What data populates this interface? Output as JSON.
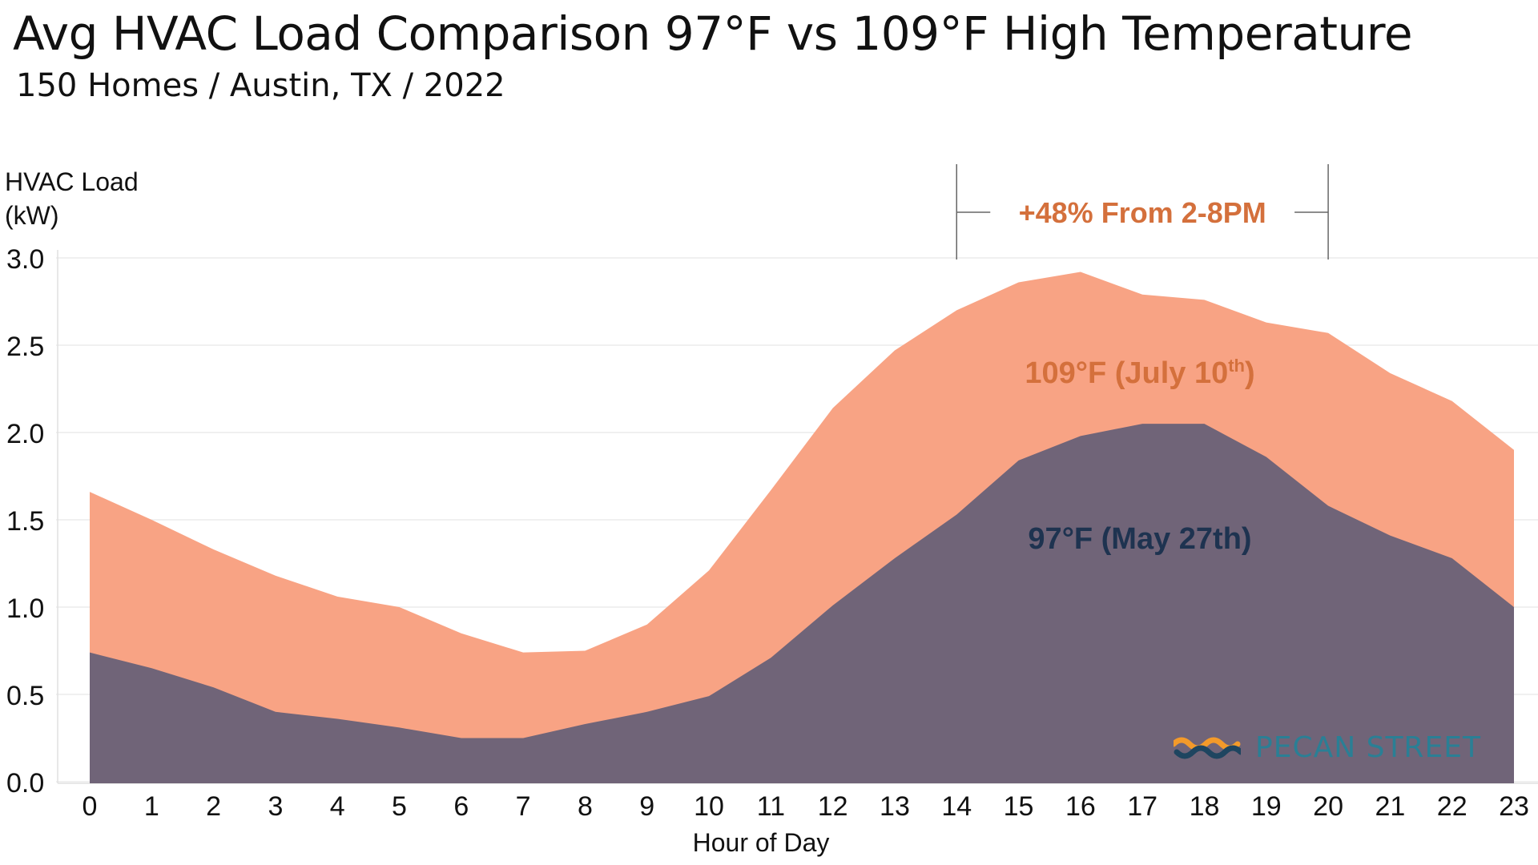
{
  "title": "Avg HVAC Load Comparison 97°F vs 109°F High Temperature",
  "subtitle": "150 Homes / Austin, TX / 2022",
  "brand": {
    "name": "PECAN STREET"
  },
  "colors": {
    "hot_area": "#f8a384",
    "mild_area": "#706478",
    "hot_text": "#d4703c",
    "mild_text": "#1e3350",
    "brand": "#2a7f95",
    "brand_accent": "#f39a2a"
  },
  "chart_data": {
    "type": "area",
    "ylabel_line1": "HVAC Load",
    "ylabel_line2": "(kW)",
    "xlabel": "Hour of Day",
    "x": [
      0,
      1,
      2,
      3,
      4,
      5,
      6,
      7,
      8,
      9,
      10,
      11,
      12,
      13,
      14,
      15,
      16,
      17,
      18,
      19,
      20,
      21,
      22,
      23
    ],
    "ylim": [
      0,
      3.0
    ],
    "yticks": [
      "0.0",
      "0.5",
      "1.0",
      "1.5",
      "2.0",
      "2.5",
      "3.0"
    ],
    "grid": true,
    "series": [
      {
        "name": "109°F (July 10th)",
        "label_main": "109°F (July 10",
        "label_sup": "th",
        "label_end": ")",
        "values": [
          1.66,
          1.5,
          1.33,
          1.18,
          1.06,
          1.0,
          0.85,
          0.74,
          0.75,
          0.9,
          1.21,
          1.67,
          2.14,
          2.47,
          2.7,
          2.86,
          2.92,
          2.79,
          2.76,
          2.63,
          2.57,
          2.34,
          2.18,
          1.9
        ]
      },
      {
        "name": "97°F (May 27th)",
        "values": [
          0.74,
          0.65,
          0.54,
          0.4,
          0.36,
          0.31,
          0.25,
          0.25,
          0.33,
          0.4,
          0.49,
          0.71,
          1.01,
          1.28,
          1.53,
          1.84,
          1.98,
          2.05,
          2.05,
          1.86,
          1.58,
          1.41,
          1.28,
          1.0
        ]
      }
    ],
    "annotation": {
      "text": "+48% From 2-8PM",
      "x_start": 14,
      "x_end": 20
    }
  }
}
